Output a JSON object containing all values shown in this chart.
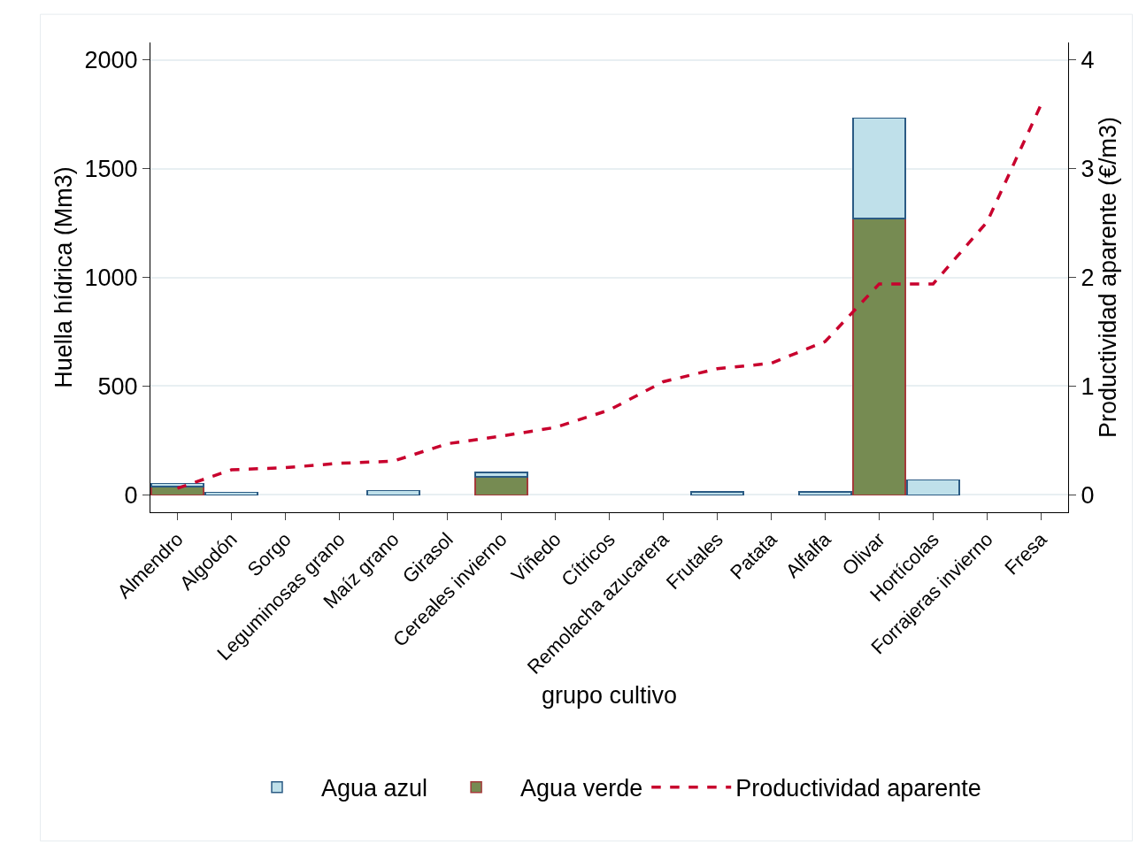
{
  "chart_data": {
    "type": "bar",
    "stacked": true,
    "xlabel": "grupo cultivo",
    "ylabel": "Huella hídrica (Mm3)",
    "y2label": "Productividad aparente (€/m3)",
    "categories": [
      "Almendro",
      "Algodón",
      "Sorgo",
      "Leguminosas grano",
      "Maíz grano",
      "Girasol",
      "Cereales invierno",
      "Viñedo",
      "Cítricos",
      "Remolacha azucarera",
      "Frutales",
      "Patata",
      "Alfalfa",
      "Olivar",
      "Hortícolas",
      "Forrajeras invierno",
      "Fresa"
    ],
    "series": [
      {
        "name": "Agua verde",
        "color": "#768b52",
        "values": [
          38,
          0,
          0,
          0,
          0,
          0,
          82,
          0,
          0,
          0,
          0,
          0,
          0,
          1270,
          0,
          0,
          0
        ]
      },
      {
        "name": "Agua azul",
        "color": "#bfe0ea",
        "values": [
          15,
          12,
          0,
          0,
          20,
          0,
          22,
          0,
          0,
          0,
          13,
          0,
          13,
          462,
          69,
          0,
          0
        ]
      },
      {
        "name": "Productividad aparente",
        "type": "line",
        "axis": "y2",
        "color": "#c8002d",
        "line_style": "dashed",
        "marker": "none",
        "values": [
          0.06,
          0.23,
          0.25,
          0.29,
          0.31,
          0.47,
          0.54,
          0.62,
          0.78,
          1.04,
          1.16,
          1.21,
          1.41,
          1.94,
          1.94,
          2.51,
          3.59
        ]
      }
    ],
    "ylim": [
      -80,
      2080
    ],
    "yticks": [
      0,
      500,
      1000,
      1500,
      2000
    ],
    "y2lim": [
      -0.16,
      4.16
    ],
    "y2ticks": [
      0,
      1,
      2,
      3,
      4
    ],
    "grid": "y",
    "legend": "bottom"
  }
}
